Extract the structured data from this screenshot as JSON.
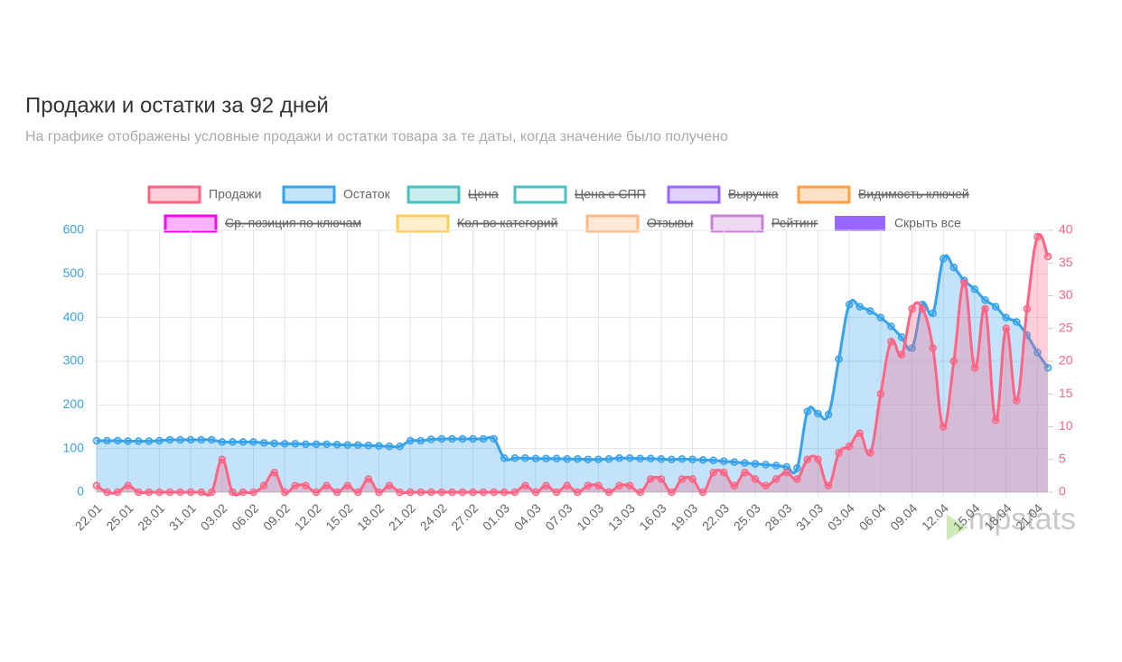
{
  "chart_data": {
    "type": "line",
    "title": "Продажи и остатки за 92 дней",
    "subtitle": "На графике отображены условные продажи и остатки товара за те даты, когда значение было получено",
    "categories": [
      "22.01",
      null,
      null,
      "25.01",
      null,
      null,
      "28.01",
      null,
      null,
      "31.01",
      null,
      null,
      "03.02",
      null,
      null,
      "06.02",
      null,
      null,
      "09.02",
      null,
      null,
      "12.02",
      null,
      null,
      "15.02",
      null,
      null,
      "18.02",
      null,
      null,
      "21.02",
      null,
      null,
      "24.02",
      null,
      null,
      "27.02",
      null,
      null,
      "01.03",
      null,
      null,
      "04.03",
      null,
      null,
      "07.03",
      null,
      null,
      "10.03",
      null,
      null,
      "13.03",
      null,
      null,
      "16.03",
      null,
      null,
      "19.03",
      null,
      null,
      "22.03",
      null,
      null,
      "25.03",
      null,
      null,
      "28.03",
      null,
      null,
      "31.03",
      null,
      null,
      "03.04",
      null,
      null,
      "06.04",
      null,
      null,
      "09.04",
      null,
      null,
      "12.04",
      null,
      null,
      "15.04",
      null,
      null,
      "18.04",
      null,
      null,
      "21.04",
      null
    ],
    "series": [
      {
        "name": "Продажи",
        "color": "#ff6384",
        "axis": "y2",
        "values": [
          1,
          0,
          0,
          1,
          0,
          0,
          0,
          0,
          0,
          0,
          0,
          0,
          5,
          0,
          0,
          0,
          1,
          3,
          0,
          1,
          1,
          0,
          1,
          0,
          1,
          0,
          2,
          0,
          1,
          0,
          0,
          0,
          0,
          0,
          0,
          0,
          0,
          0,
          0,
          0,
          0,
          1,
          0,
          1,
          0,
          1,
          0,
          1,
          1,
          0,
          1,
          1,
          0,
          2,
          2,
          0,
          2,
          2,
          0,
          3,
          3,
          1,
          3,
          2,
          1,
          2,
          3,
          2,
          5,
          5,
          1,
          6,
          7,
          9,
          6,
          15,
          23,
          21,
          28,
          28,
          22,
          10,
          20,
          32,
          19,
          28,
          11,
          25,
          14,
          28,
          39,
          36
        ]
      },
      {
        "name": "Остаток",
        "color": "#36a2eb",
        "values": [
          118,
          118,
          118,
          117,
          117,
          117,
          118,
          120,
          120,
          120,
          120,
          120,
          115,
          115,
          115,
          115,
          113,
          112,
          111,
          111,
          110,
          110,
          110,
          109,
          108,
          108,
          107,
          106,
          105,
          105,
          118,
          118,
          121,
          122,
          122,
          122,
          122,
          122,
          122,
          78,
          78,
          78,
          77,
          77,
          77,
          76,
          76,
          75,
          75,
          76,
          78,
          78,
          77,
          77,
          76,
          75,
          76,
          75,
          74,
          73,
          71,
          69,
          67,
          65,
          63,
          61,
          58,
          55,
          185,
          180,
          178,
          305,
          430,
          425,
          415,
          400,
          380,
          355,
          330,
          430,
          410,
          535,
          515,
          485,
          465,
          440,
          425,
          400,
          390,
          360,
          320,
          285
        ]
      }
    ],
    "hidden_series": [
      {
        "name": "Цена",
        "color": "#4bc0c0"
      },
      {
        "name": "Цена с СПП",
        "color": "#4bc0c0"
      },
      {
        "name": "Выручка",
        "color": "#9966ff"
      },
      {
        "name": "Видимость ключей",
        "color": "#ff9f40"
      },
      {
        "name": "Ср. позиция по ключам",
        "color": "#ff00ff"
      },
      {
        "name": "Кол-во категорий",
        "color": "#ffcd56"
      },
      {
        "name": "Отзывы",
        "color": "#ffb980"
      },
      {
        "name": "Рейтинг",
        "color": "#c982d6"
      }
    ],
    "legend_button": {
      "label": "Скрыть все",
      "color": "#9966ff"
    },
    "ylim": [
      0,
      600
    ],
    "yticks": [
      0,
      100,
      200,
      300,
      400,
      500,
      600
    ],
    "y2lim": [
      0,
      40
    ],
    "y2ticks": [
      0,
      5,
      10,
      15,
      20,
      25,
      30,
      35,
      40
    ],
    "grid": true,
    "watermark": "mpstats"
  }
}
